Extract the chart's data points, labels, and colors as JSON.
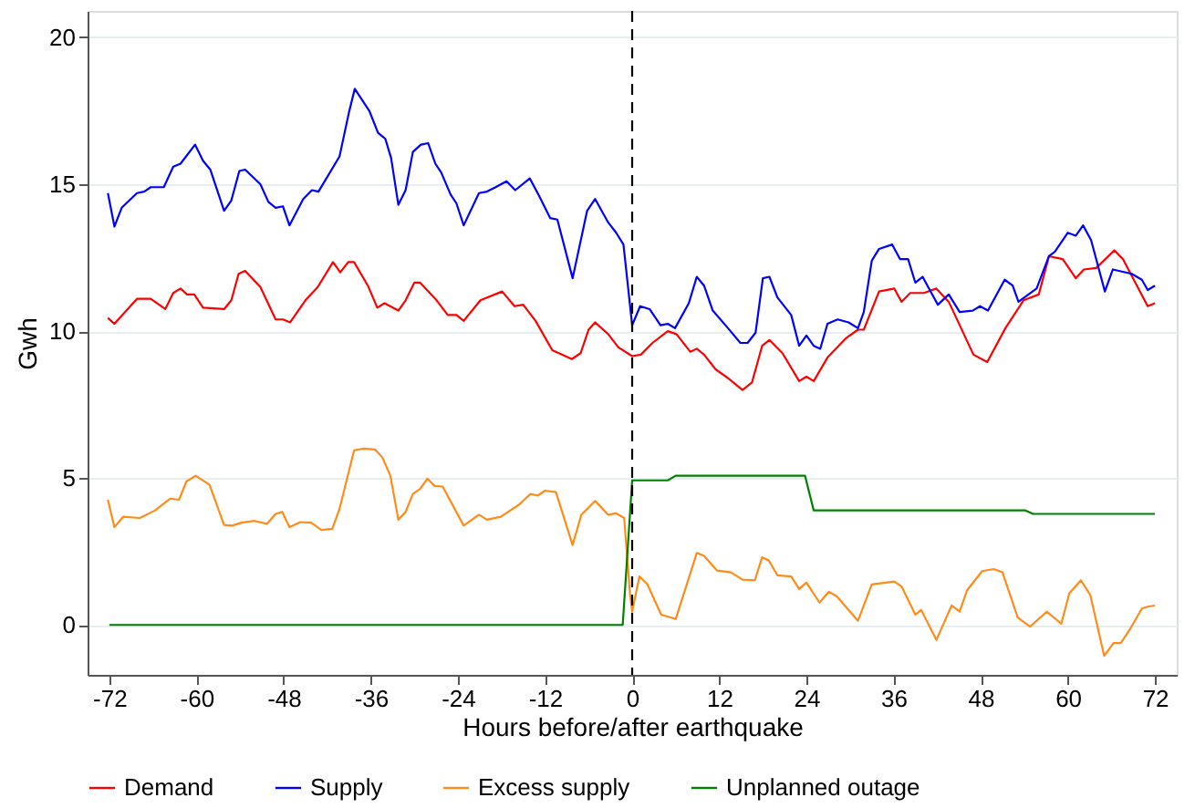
{
  "chart_data": {
    "type": "line",
    "xlabel": "Hours before/after earthquake",
    "ylabel": "Gwh",
    "xlim": [
      -75,
      75
    ],
    "ylim": [
      -1.7,
      20.9
    ],
    "xticks": [
      -72,
      -60,
      -48,
      -36,
      -24,
      -12,
      0,
      12,
      24,
      36,
      48,
      60,
      72
    ],
    "yticks": [
      0,
      5,
      10,
      15,
      20
    ],
    "grid": "y",
    "legend": "bottom",
    "line_style": "solid",
    "marker": "none",
    "ref_lines": [
      {
        "axis": "x",
        "value": 0,
        "color": "#000000",
        "line_style": "dashed"
      }
    ],
    "series": [
      {
        "name": "Demand",
        "color": "#ff0000",
        "x": [
          -72.2,
          -71.3,
          -68.2,
          -66.3,
          -64.3,
          -63.2,
          -62.2,
          -61.3,
          -60.3,
          -59.1,
          -56.2,
          -55.2,
          -54.2,
          -53.3,
          -51.2,
          -49.1,
          -48.1,
          -47.1,
          -45,
          -43.3,
          -41.2,
          -40.2,
          -39.1,
          -38.3,
          -36.4,
          -35.1,
          -34.1,
          -32.2,
          -31.2,
          -30,
          -29.2,
          -27.1,
          -25.4,
          -24.2,
          -23.2,
          -20.9,
          -17.9,
          -16.2,
          -15,
          -13.3,
          -11,
          -8.3,
          -7.1,
          -6,
          -5.1,
          -3.3,
          -1.9,
          0,
          1.2,
          2.8,
          4.9,
          6.1,
          8,
          8.9,
          9.9,
          11.5,
          13.2,
          15.2,
          16.5,
          17.9,
          18.9,
          20.7,
          23,
          24,
          25,
          26.9,
          29.4,
          31.1,
          31.9,
          34,
          36.1,
          37.1,
          38.3,
          40.2,
          41.9,
          43.6,
          47,
          48.9,
          51.4,
          53.9,
          56,
          57.4,
          59.3,
          61.1,
          62.2,
          63.9,
          66.4,
          67.6,
          71,
          72
        ],
        "values": [
          10.45,
          10.25,
          11.1,
          11.1,
          10.75,
          11.3,
          11.45,
          11.25,
          11.25,
          10.8,
          10.75,
          11.05,
          11.95,
          12.05,
          11.5,
          10.4,
          10.4,
          10.3,
          11.05,
          11.5,
          12.35,
          12,
          12.35,
          12.35,
          11.55,
          10.8,
          10.95,
          10.7,
          11.05,
          11.65,
          11.65,
          11.1,
          10.55,
          10.55,
          10.35,
          11.05,
          11.35,
          10.85,
          10.9,
          10.35,
          9.35,
          9.05,
          9.25,
          10.05,
          10.3,
          9.9,
          9.45,
          9.15,
          9.2,
          9.6,
          10,
          9.9,
          9.3,
          9.4,
          9.2,
          8.7,
          8.4,
          8,
          8.25,
          9.5,
          9.7,
          9.25,
          8.3,
          8.45,
          8.3,
          9.1,
          9.75,
          10.05,
          10.05,
          11.35,
          11.45,
          11,
          11.3,
          11.3,
          11.45,
          11,
          9.2,
          8.95,
          10.1,
          11.05,
          11.25,
          12.55,
          12.45,
          11.8,
          12.1,
          12.15,
          12.75,
          12.45,
          10.85,
          10.95
        ]
      },
      {
        "name": "Supply",
        "color": "#0000ff",
        "x": [
          -72.2,
          -71.3,
          -70.3,
          -68.2,
          -67.2,
          -66.3,
          -64.5,
          -63.2,
          -62.2,
          -60.2,
          -59.1,
          -58.1,
          -56.2,
          -55.2,
          -54.1,
          -53.3,
          -51.2,
          -50.1,
          -49.1,
          -48.1,
          -47.2,
          -45.3,
          -44.1,
          -43.2,
          -40.3,
          -39,
          -38.2,
          -36.2,
          -35,
          -34,
          -33.2,
          -32.2,
          -31.2,
          -30.2,
          -29.1,
          -28.1,
          -27.1,
          -26.3,
          -25,
          -24.2,
          -23.2,
          -21.1,
          -20,
          -18.8,
          -17.3,
          -16.1,
          -14.1,
          -12.8,
          -11.3,
          -10.3,
          -8.2,
          -6.2,
          -5.1,
          -3.3,
          -2.2,
          -1.2,
          0,
          1.1,
          2.4,
          3.9,
          4.9,
          5.9,
          7.8,
          8.9,
          9.9,
          11.1,
          13.2,
          14.9,
          15.9,
          17,
          18,
          18.9,
          20,
          21.9,
          23,
          24,
          25,
          25.9,
          26.9,
          28.3,
          29.8,
          31.1,
          31.9,
          33,
          34,
          35.8,
          36.9,
          38,
          39,
          40,
          42.1,
          43.6,
          45.1,
          46.9,
          47.9,
          49,
          51.3,
          52.4,
          53.2,
          55.7,
          57.4,
          58.2,
          60,
          61.1,
          62.1,
          63.2,
          65.1,
          66.2,
          68.8,
          70.2,
          71,
          72
        ],
        "values": [
          14.7,
          13.56,
          14.2,
          14.7,
          14.75,
          14.9,
          14.9,
          15.6,
          15.7,
          16.35,
          15.8,
          15.5,
          14.1,
          14.45,
          15.45,
          15.5,
          15,
          14.4,
          14.2,
          14.25,
          13.6,
          14.5,
          14.8,
          14.75,
          15.95,
          17.45,
          18.25,
          17.5,
          16.75,
          16.55,
          15.9,
          14.3,
          14.8,
          16.1,
          16.35,
          16.4,
          15.7,
          15.4,
          14.65,
          14.35,
          13.6,
          14.7,
          14.75,
          14.9,
          15.1,
          14.8,
          15.2,
          14.6,
          13.85,
          13.8,
          11.8,
          14.1,
          14.5,
          13.7,
          13.35,
          12.95,
          10.2,
          10.85,
          10.75,
          10.2,
          10.25,
          10.1,
          10.95,
          11.85,
          11.55,
          10.7,
          10.1,
          9.6,
          9.6,
          9.95,
          11.8,
          11.85,
          11.15,
          10.55,
          9.5,
          9.85,
          9.5,
          9.4,
          10.25,
          10.4,
          10.3,
          10.1,
          10.65,
          12.4,
          12.8,
          12.95,
          12.45,
          12.45,
          11.65,
          11.85,
          10.9,
          11.25,
          10.65,
          10.7,
          10.85,
          10.7,
          11.75,
          11.55,
          11,
          11.45,
          12.55,
          12.7,
          13.35,
          13.25,
          13.6,
          13.1,
          11.35,
          12.1,
          11.95,
          11.75,
          11.4,
          11.55
        ]
      },
      {
        "name": "Excess supply",
        "color": "#ff8c1a",
        "x": [
          -72.2,
          -71.3,
          -70.1,
          -67.8,
          -65.7,
          -63.6,
          -62.4,
          -61.4,
          -60.1,
          -58.2,
          -56.2,
          -55.1,
          -53.8,
          -52,
          -50.3,
          -49.1,
          -48.2,
          -47.2,
          -45.7,
          -44.2,
          -42.8,
          -41.3,
          -40.3,
          -38.3,
          -37.1,
          -35.4,
          -34.4,
          -33.3,
          -32.2,
          -31.2,
          -30.2,
          -29.2,
          -28.2,
          -27.2,
          -26.1,
          -23.2,
          -21.1,
          -20,
          -18.1,
          -15.6,
          -14,
          -13,
          -12,
          -10.5,
          -8.2,
          -7,
          -5.1,
          -3.3,
          -2.2,
          -1.1,
          -0.3,
          0,
          1,
          2.1,
          4,
          6,
          8.9,
          9.9,
          11.7,
          13.6,
          15.2,
          16.9,
          17.9,
          18.8,
          20,
          21.9,
          23,
          24,
          25.8,
          27.1,
          28.2,
          31.1,
          33,
          36.1,
          37.1,
          39,
          39.8,
          41.9,
          44,
          45.1,
          46.1,
          48.2,
          49.8,
          51,
          53.1,
          54.8,
          57.1,
          59.1,
          60.2,
          61.8,
          63.1,
          65,
          66.3,
          67.3,
          68.5,
          70.2,
          71,
          72
        ],
        "values": [
          4.26,
          3.33,
          3.68,
          3.64,
          3.9,
          4.3,
          4.26,
          4.88,
          5.08,
          4.77,
          3.4,
          3.38,
          3.48,
          3.54,
          3.44,
          3.78,
          3.85,
          3.33,
          3.5,
          3.48,
          3.23,
          3.27,
          3.95,
          5.94,
          6,
          5.97,
          5.7,
          5.08,
          3.58,
          3.85,
          4.46,
          4.63,
          4.98,
          4.73,
          4.71,
          3.38,
          3.75,
          3.58,
          3.68,
          4.09,
          4.46,
          4.4,
          4.57,
          4.52,
          2.72,
          3.75,
          4.22,
          3.75,
          3.8,
          3.64,
          1.07,
          0.45,
          1.65,
          1.38,
          0.35,
          0.2,
          2.45,
          2.35,
          1.85,
          1.79,
          1.54,
          1.52,
          2.3,
          2.2,
          1.69,
          1.65,
          1.22,
          1.44,
          0.76,
          1.13,
          0.97,
          0.14,
          1.38,
          1.48,
          1.31,
          0.35,
          0.51,
          -0.51,
          0.66,
          0.45,
          1.17,
          1.83,
          1.9,
          1.79,
          0.25,
          -0.06,
          0.45,
          0.04,
          1.07,
          1.52,
          1.01,
          -1.05,
          -0.62,
          -0.62,
          -0.17,
          0.56,
          0.62,
          0.66
        ]
      },
      {
        "name": "Unplanned outage",
        "color": "#008000",
        "x": [
          -72,
          -1.3,
          0,
          4.9,
          6,
          23.8,
          25,
          54.1,
          55.2,
          72
        ],
        "values": [
          0,
          0,
          4.92,
          4.92,
          5.08,
          5.08,
          3.9,
          3.9,
          3.78,
          3.78
        ]
      }
    ]
  }
}
